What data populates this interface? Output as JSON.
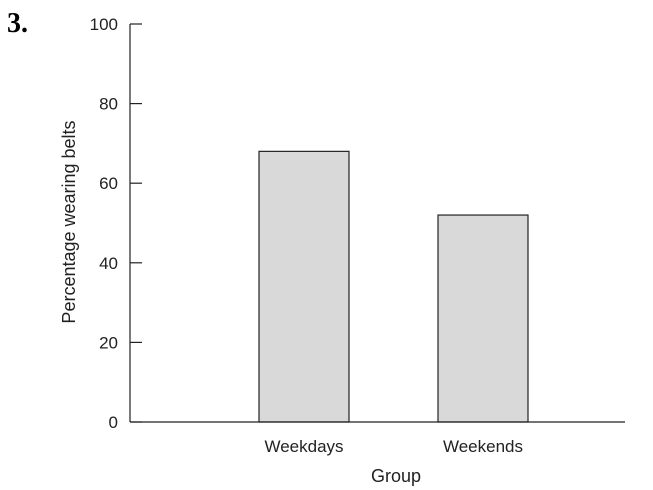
{
  "question_number": "3.",
  "chart_data": {
    "type": "bar",
    "categories": [
      "Weekdays",
      "Weekends"
    ],
    "values": [
      68,
      52
    ],
    "title": "",
    "xlabel": "Group",
    "ylabel": "Percentage wearing belts",
    "ylim": [
      0,
      100
    ],
    "yticks": [
      0,
      20,
      40,
      60,
      80,
      100
    ],
    "grid": false,
    "bar_color": "#d9d9d9",
    "bar_edge_color": "#222222"
  }
}
